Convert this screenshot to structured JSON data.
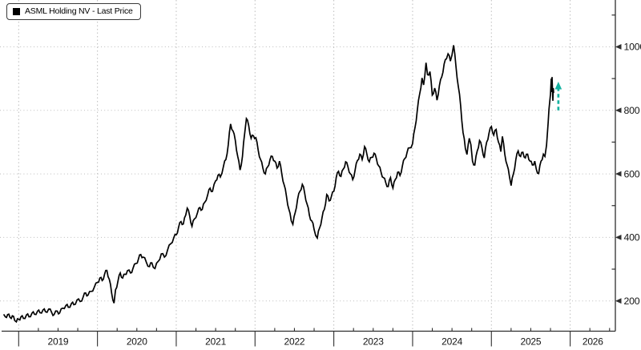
{
  "legend": {
    "label": "ASML Holding NV - Last Price",
    "swatch_color": "#000000"
  },
  "colors": {
    "background": "#ffffff",
    "line": "#000000",
    "grid": "#bdbdbd",
    "axis": "#2e2e2e",
    "tick_label": "#141414",
    "annotation_arrow": "#15b2a1"
  },
  "chart_data": {
    "type": "line",
    "title": "",
    "xlabel": "",
    "ylabel": "",
    "grid": true,
    "legend_position": "top-left",
    "x_axis": {
      "tick_years": [
        2019,
        2020,
        2021,
        2022,
        2023,
        2024,
        2025,
        2026
      ],
      "range": [
        2018.78,
        2026.57
      ],
      "quarter_minor_ticks": true
    },
    "y_axis": {
      "side": "right",
      "ticks": [
        200,
        400,
        600,
        800,
        1000
      ],
      "minor_ticks": [
        300,
        500,
        700,
        900,
        1100
      ],
      "range": [
        106,
        1147
      ]
    },
    "series": [
      {
        "name": "ASML Holding NV - Last Price",
        "color": "#000000",
        "points": [
          [
            2018.81,
            158
          ],
          [
            2018.83,
            150
          ],
          [
            2018.86,
            157
          ],
          [
            2018.89,
            148
          ],
          [
            2018.92,
            153
          ],
          [
            2018.95,
            138
          ],
          [
            2018.97,
            134
          ],
          [
            2019.0,
            142
          ],
          [
            2019.03,
            150
          ],
          [
            2019.06,
            145
          ],
          [
            2019.1,
            156
          ],
          [
            2019.13,
            150
          ],
          [
            2019.17,
            162
          ],
          [
            2019.2,
            158
          ],
          [
            2019.24,
            168
          ],
          [
            2019.27,
            163
          ],
          [
            2019.31,
            172
          ],
          [
            2019.34,
            166
          ],
          [
            2019.38,
            174
          ],
          [
            2019.42,
            163
          ],
          [
            2019.45,
            157
          ],
          [
            2019.49,
            168
          ],
          [
            2019.52,
            162
          ],
          [
            2019.56,
            177
          ],
          [
            2019.6,
            186
          ],
          [
            2019.63,
            180
          ],
          [
            2019.67,
            192
          ],
          [
            2019.7,
            188
          ],
          [
            2019.74,
            203
          ],
          [
            2019.78,
            198
          ],
          [
            2019.82,
            213
          ],
          [
            2019.85,
            225
          ],
          [
            2019.88,
            218
          ],
          [
            2019.92,
            230
          ],
          [
            2019.96,
            243
          ],
          [
            2020.0,
            258
          ],
          [
            2020.03,
            272
          ],
          [
            2020.06,
            264
          ],
          [
            2020.09,
            284
          ],
          [
            2020.12,
            296
          ],
          [
            2020.15,
            268
          ],
          [
            2020.18,
            225
          ],
          [
            2020.21,
            193
          ],
          [
            2020.23,
            235
          ],
          [
            2020.26,
            262
          ],
          [
            2020.29,
            288
          ],
          [
            2020.32,
            272
          ],
          [
            2020.35,
            284
          ],
          [
            2020.38,
            295
          ],
          [
            2020.42,
            288
          ],
          [
            2020.45,
            302
          ],
          [
            2020.49,
            318
          ],
          [
            2020.52,
            332
          ],
          [
            2020.55,
            346
          ],
          [
            2020.58,
            338
          ],
          [
            2020.62,
            322
          ],
          [
            2020.66,
            308
          ],
          [
            2020.69,
            320
          ],
          [
            2020.73,
            302
          ],
          [
            2020.77,
            324
          ],
          [
            2020.81,
            348
          ],
          [
            2020.85,
            338
          ],
          [
            2020.89,
            360
          ],
          [
            2020.93,
            380
          ],
          [
            2020.97,
            400
          ],
          [
            2021.0,
            408
          ],
          [
            2021.03,
            432
          ],
          [
            2021.06,
            450
          ],
          [
            2021.09,
            442
          ],
          [
            2021.12,
            470
          ],
          [
            2021.14,
            492
          ],
          [
            2021.17,
            468
          ],
          [
            2021.2,
            435
          ],
          [
            2021.23,
            458
          ],
          [
            2021.27,
            478
          ],
          [
            2021.3,
            494
          ],
          [
            2021.33,
            488
          ],
          [
            2021.36,
            510
          ],
          [
            2021.4,
            535
          ],
          [
            2021.43,
            555
          ],
          [
            2021.46,
            545
          ],
          [
            2021.5,
            578
          ],
          [
            2021.53,
            596
          ],
          [
            2021.56,
            590
          ],
          [
            2021.6,
            625
          ],
          [
            2021.63,
            645
          ],
          [
            2021.66,
            692
          ],
          [
            2021.69,
            757
          ],
          [
            2021.72,
            735
          ],
          [
            2021.75,
            705
          ],
          [
            2021.78,
            655
          ],
          [
            2021.81,
            612
          ],
          [
            2021.84,
            655
          ],
          [
            2021.87,
            730
          ],
          [
            2021.89,
            774
          ],
          [
            2021.92,
            752
          ],
          [
            2021.95,
            712
          ],
          [
            2021.98,
            720
          ],
          [
            2022.01,
            714
          ],
          [
            2022.04,
            675
          ],
          [
            2022.07,
            645
          ],
          [
            2022.1,
            618
          ],
          [
            2022.13,
            600
          ],
          [
            2022.16,
            622
          ],
          [
            2022.19,
            645
          ],
          [
            2022.22,
            655
          ],
          [
            2022.25,
            640
          ],
          [
            2022.28,
            618
          ],
          [
            2022.31,
            640
          ],
          [
            2022.34,
            600
          ],
          [
            2022.37,
            565
          ],
          [
            2022.4,
            528
          ],
          [
            2022.43,
            488
          ],
          [
            2022.46,
            452
          ],
          [
            2022.48,
            441
          ],
          [
            2022.51,
            478
          ],
          [
            2022.54,
            520
          ],
          [
            2022.57,
            545
          ],
          [
            2022.6,
            567
          ],
          [
            2022.63,
            540
          ],
          [
            2022.66,
            505
          ],
          [
            2022.69,
            470
          ],
          [
            2022.72,
            452
          ],
          [
            2022.75,
            425
          ],
          [
            2022.79,
            398
          ],
          [
            2022.82,
            430
          ],
          [
            2022.85,
            462
          ],
          [
            2022.88,
            488
          ],
          [
            2022.91,
            535
          ],
          [
            2022.94,
            515
          ],
          [
            2022.97,
            530
          ],
          [
            2023.0,
            545
          ],
          [
            2023.03,
            588
          ],
          [
            2023.06,
            608
          ],
          [
            2023.09,
            592
          ],
          [
            2023.12,
            615
          ],
          [
            2023.15,
            638
          ],
          [
            2023.18,
            622
          ],
          [
            2023.21,
            600
          ],
          [
            2023.24,
            582
          ],
          [
            2023.27,
            612
          ],
          [
            2023.3,
            642
          ],
          [
            2023.33,
            662
          ],
          [
            2023.36,
            645
          ],
          [
            2023.39,
            686
          ],
          [
            2023.42,
            662
          ],
          [
            2023.45,
            638
          ],
          [
            2023.48,
            652
          ],
          [
            2023.51,
            665
          ],
          [
            2023.54,
            648
          ],
          [
            2023.57,
            625
          ],
          [
            2023.6,
            605
          ],
          [
            2023.63,
            588
          ],
          [
            2023.66,
            572
          ],
          [
            2023.69,
            560
          ],
          [
            2023.72,
            588
          ],
          [
            2023.75,
            555
          ],
          [
            2023.78,
            582
          ],
          [
            2023.81,
            605
          ],
          [
            2023.84,
            595
          ],
          [
            2023.87,
            625
          ],
          [
            2023.9,
            648
          ],
          [
            2023.93,
            668
          ],
          [
            2023.96,
            682
          ],
          [
            2024.0,
            695
          ],
          [
            2024.03,
            745
          ],
          [
            2024.06,
            800
          ],
          [
            2024.09,
            852
          ],
          [
            2024.12,
            902
          ],
          [
            2024.14,
            880
          ],
          [
            2024.17,
            950
          ],
          [
            2024.19,
            912
          ],
          [
            2024.22,
            922
          ],
          [
            2024.25,
            848
          ],
          [
            2024.28,
            870
          ],
          [
            2024.31,
            832
          ],
          [
            2024.34,
            878
          ],
          [
            2024.37,
            905
          ],
          [
            2024.4,
            946
          ],
          [
            2024.43,
            962
          ],
          [
            2024.45,
            978
          ],
          [
            2024.48,
            955
          ],
          [
            2024.52,
            1005
          ],
          [
            2024.55,
            940
          ],
          [
            2024.58,
            875
          ],
          [
            2024.61,
            815
          ],
          [
            2024.64,
            730
          ],
          [
            2024.67,
            680
          ],
          [
            2024.69,
            661
          ],
          [
            2024.72,
            712
          ],
          [
            2024.74,
            692
          ],
          [
            2024.76,
            640
          ],
          [
            2024.79,
            628
          ],
          [
            2024.82,
            672
          ],
          [
            2024.85,
            705
          ],
          [
            2024.88,
            682
          ],
          [
            2024.91,
            650
          ],
          [
            2024.94,
            700
          ],
          [
            2024.97,
            728
          ],
          [
            2025.0,
            749
          ],
          [
            2025.03,
            722
          ],
          [
            2025.06,
            740
          ],
          [
            2025.09,
            700
          ],
          [
            2025.12,
            670
          ],
          [
            2025.14,
            718
          ],
          [
            2025.17,
            662
          ],
          [
            2025.2,
            628
          ],
          [
            2025.23,
            590
          ],
          [
            2025.25,
            563
          ],
          [
            2025.28,
            600
          ],
          [
            2025.31,
            645
          ],
          [
            2025.34,
            672
          ],
          [
            2025.37,
            655
          ],
          [
            2025.4,
            668
          ],
          [
            2025.43,
            650
          ],
          [
            2025.46,
            662
          ],
          [
            2025.49,
            640
          ],
          [
            2025.52,
            628
          ],
          [
            2025.55,
            640
          ],
          [
            2025.57,
            615
          ],
          [
            2025.6,
            601
          ],
          [
            2025.63,
            640
          ],
          [
            2025.66,
            662
          ],
          [
            2025.68,
            655
          ],
          [
            2025.7,
            690
          ],
          [
            2025.72,
            760
          ],
          [
            2025.73,
            802
          ],
          [
            2025.75,
            850
          ],
          [
            2025.76,
            900
          ],
          [
            2025.765,
            858
          ],
          [
            2025.77,
            905
          ],
          [
            2025.78,
            830
          ],
          [
            2025.785,
            870
          ],
          [
            2025.79,
            855
          ]
        ]
      }
    ],
    "annotation": {
      "type": "up-arrow",
      "x_year": 2025.85,
      "y_from": 800,
      "y_to": 885,
      "style": "dashed",
      "color": "#15b2a1"
    }
  }
}
